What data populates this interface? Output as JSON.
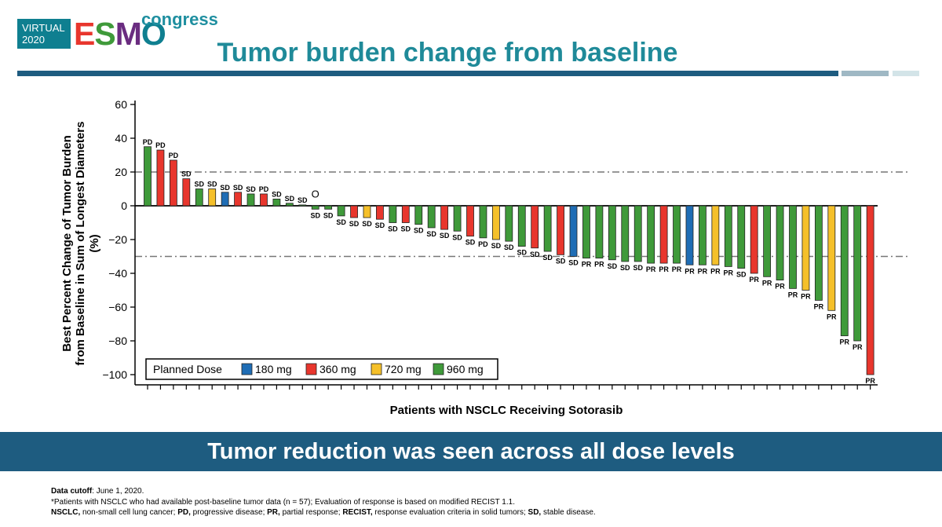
{
  "logo": {
    "virtual": "VIRTUAL",
    "year": "2020",
    "esmo": "ESMO",
    "congress": "congress"
  },
  "slide_title": "Tumor burden change from baseline",
  "banner": "Tumor reduction was seen across all dose levels",
  "footnotes": {
    "line1_bold": "Data cutoff",
    "line1_rest": ": June 1, 2020.",
    "line2": "*Patients with NSCLC who had available post-baseline tumor data (n = 57); Evaluation of response is based on modified RECIST 1.1.",
    "line3": [
      {
        "b": "NSCLC,",
        "t": " non-small cell lung cancer; "
      },
      {
        "b": "PD,",
        "t": " progressive disease; "
      },
      {
        "b": "PR,",
        "t": " partial response; "
      },
      {
        "b": "RECIST,",
        "t": " response evaluation criteria in solid tumors; "
      },
      {
        "b": "SD,",
        "t": " stable disease."
      }
    ]
  },
  "colors": {
    "180 mg": "#1f6db5",
    "360 mg": "#e8362d",
    "720 mg": "#f5c02a",
    "960 mg": "#3f9a3a",
    "teal": "#1f8a99",
    "navy": "#1e5c80"
  },
  "chart_data": {
    "type": "bar",
    "xlabel": "Patients with NSCLC Receiving Sotorasib",
    "ylabel": [
      "Best Percent Change of Tumor Burden",
      "from Baseline in Sum of Longest Diameters",
      "(%)"
    ],
    "ylim": [
      -105,
      62
    ],
    "yticks": [
      60,
      40,
      20,
      0,
      -20,
      -40,
      -60,
      -80,
      -100
    ],
    "ytick_labels": [
      "60",
      "40",
      "20",
      "0",
      "−20",
      "−40",
      "−60",
      "−80",
      "−100"
    ],
    "reference_lines": [
      20,
      -30
    ],
    "legend": {
      "title": "Planned Dose",
      "entries": [
        "180 mg",
        "360 mg",
        "720 mg",
        "960 mg"
      ],
      "placement": "bottom-left"
    },
    "bars": [
      {
        "v": 35,
        "d": "960 mg",
        "r": "PD"
      },
      {
        "v": 33,
        "d": "360 mg",
        "r": "PD"
      },
      {
        "v": 27,
        "d": "360 mg",
        "r": "PD"
      },
      {
        "v": 16,
        "d": "360 mg",
        "r": "SD"
      },
      {
        "v": 10,
        "d": "960 mg",
        "r": "SD"
      },
      {
        "v": 10,
        "d": "720 mg",
        "r": "SD"
      },
      {
        "v": 8,
        "d": "180 mg",
        "r": "SD"
      },
      {
        "v": 8,
        "d": "360 mg",
        "r": "SD"
      },
      {
        "v": 7,
        "d": "960 mg",
        "r": "SD"
      },
      {
        "v": 7,
        "d": "360 mg",
        "r": "PD"
      },
      {
        "v": 4,
        "d": "960 mg",
        "r": "SD"
      },
      {
        "v": 1.5,
        "d": "960 mg",
        "r": "SD"
      },
      {
        "v": 0.5,
        "d": "960 mg",
        "r": "SD"
      },
      {
        "v": -2,
        "d": "960 mg",
        "r": "SD",
        "marker": "O"
      },
      {
        "v": -2,
        "d": "960 mg",
        "r": "SD"
      },
      {
        "v": -6,
        "d": "960 mg",
        "r": "SD"
      },
      {
        "v": -7,
        "d": "360 mg",
        "r": "SD"
      },
      {
        "v": -7,
        "d": "720 mg",
        "r": "SD"
      },
      {
        "v": -8,
        "d": "360 mg",
        "r": "SD"
      },
      {
        "v": -10,
        "d": "960 mg",
        "r": "SD"
      },
      {
        "v": -10,
        "d": "360 mg",
        "r": "SD"
      },
      {
        "v": -11,
        "d": "960 mg",
        "r": "SD"
      },
      {
        "v": -13,
        "d": "960 mg",
        "r": "SD"
      },
      {
        "v": -14,
        "d": "360 mg",
        "r": "SD"
      },
      {
        "v": -15,
        "d": "960 mg",
        "r": "SD"
      },
      {
        "v": -18,
        "d": "360 mg",
        "r": "SD"
      },
      {
        "v": -19,
        "d": "960 mg",
        "r": "PD"
      },
      {
        "v": -20,
        "d": "720 mg",
        "r": "SD"
      },
      {
        "v": -21,
        "d": "960 mg",
        "r": "SD"
      },
      {
        "v": -24,
        "d": "960 mg",
        "r": "SD"
      },
      {
        "v": -25,
        "d": "360 mg",
        "r": "SD"
      },
      {
        "v": -27,
        "d": "960 mg",
        "r": "SD"
      },
      {
        "v": -29,
        "d": "360 mg",
        "r": "SD"
      },
      {
        "v": -30,
        "d": "180 mg",
        "r": "SD"
      },
      {
        "v": -31,
        "d": "960 mg",
        "r": "PR"
      },
      {
        "v": -31,
        "d": "960 mg",
        "r": "PR"
      },
      {
        "v": -32,
        "d": "960 mg",
        "r": "SD"
      },
      {
        "v": -33,
        "d": "960 mg",
        "r": "SD"
      },
      {
        "v": -33,
        "d": "960 mg",
        "r": "SD"
      },
      {
        "v": -34,
        "d": "960 mg",
        "r": "PR"
      },
      {
        "v": -34,
        "d": "360 mg",
        "r": "PR"
      },
      {
        "v": -34,
        "d": "960 mg",
        "r": "PR"
      },
      {
        "v": -35,
        "d": "180 mg",
        "r": "PR"
      },
      {
        "v": -35,
        "d": "960 mg",
        "r": "PR"
      },
      {
        "v": -35,
        "d": "720 mg",
        "r": "PR"
      },
      {
        "v": -36,
        "d": "960 mg",
        "r": "PR"
      },
      {
        "v": -37,
        "d": "960 mg",
        "r": "SD"
      },
      {
        "v": -40,
        "d": "360 mg",
        "r": "PR"
      },
      {
        "v": -42,
        "d": "960 mg",
        "r": "PR"
      },
      {
        "v": -44,
        "d": "960 mg",
        "r": "PR"
      },
      {
        "v": -49,
        "d": "960 mg",
        "r": "PR"
      },
      {
        "v": -50,
        "d": "720 mg",
        "r": "PR"
      },
      {
        "v": -56,
        "d": "960 mg",
        "r": "PR"
      },
      {
        "v": -62,
        "d": "720 mg",
        "r": "PR"
      },
      {
        "v": -77,
        "d": "960 mg",
        "r": "PR"
      },
      {
        "v": -80,
        "d": "960 mg",
        "r": "PR"
      },
      {
        "v": -100,
        "d": "360 mg",
        "r": "PR"
      }
    ]
  }
}
